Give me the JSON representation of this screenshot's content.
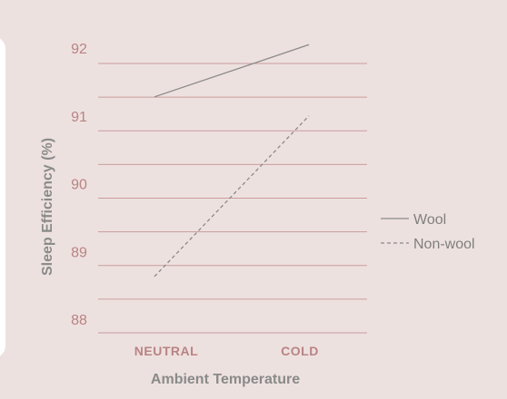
{
  "chart_data": {
    "type": "line",
    "title": "",
    "xlabel": "Ambient Temperature",
    "ylabel": "Sleep Efficiency (%)",
    "categories": [
      "NEUTRAL",
      "COLD"
    ],
    "ylim": [
      87.8,
      92.2
    ],
    "yticks": [
      88,
      89,
      90,
      91,
      92
    ],
    "grid": true,
    "legend_position": "right",
    "series": [
      {
        "name": "Wool",
        "values": [
          91.28,
          92.05
        ],
        "line_style": "solid",
        "color": "#8a8a8a"
      },
      {
        "name": "Non-wool",
        "values": [
          88.63,
          91.0
        ],
        "line_style": "dashed",
        "color": "#8a8a8a"
      }
    ]
  },
  "colors": {
    "background": "#ede1df",
    "gridline": "#c99c9d",
    "tick_text": "#b98384",
    "axis_label": "#8a8a8a"
  }
}
